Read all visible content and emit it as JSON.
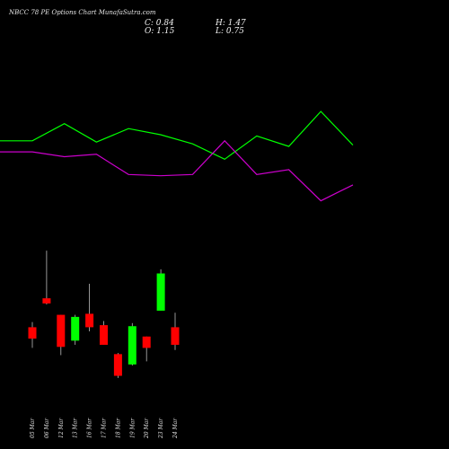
{
  "header": {
    "title": "NBCC 78 PE Options Chart MunafaSutra.com",
    "close_label": "C: 0.84",
    "open_label": "O: 1.15",
    "high_label": "H: 1.47",
    "low_label": "L: 0.75"
  },
  "colors": {
    "background": "#000000",
    "up": "#00ff00",
    "down": "#ff0000",
    "line_green": "#00ff00",
    "line_magenta": "#cc00cc"
  },
  "chart_data": [
    {
      "type": "line",
      "title": "",
      "x": [
        "",
        "05 Mar",
        "06 Mar",
        "12 Mar",
        "13 Mar",
        "16 Mar",
        "17 Mar",
        "18 Mar",
        "19 Mar",
        "20 Mar",
        "23 Mar",
        "24 Mar"
      ],
      "series": [
        {
          "name": "",
          "color": "#00ff00",
          "values": [
            0.62,
            0.62,
            0.9,
            0.6,
            0.82,
            0.72,
            0.57,
            0.32,
            0.7,
            0.53,
            1.1,
            0.55
          ]
        },
        {
          "name": "",
          "color": "#cc00cc",
          "values": [
            0.44,
            0.44,
            0.36,
            0.4,
            0.07,
            0.05,
            0.07,
            0.62,
            0.07,
            0.15,
            -0.36,
            -0.1
          ]
        }
      ],
      "ylim": [
        -0.6,
        1.6
      ],
      "grid": false
    },
    {
      "type": "candlestick",
      "title": "",
      "categories": [
        "05 Mar",
        "06 Mar",
        "12 Mar",
        "13 Mar",
        "16 Mar",
        "17 Mar",
        "18 Mar",
        "19 Mar",
        "20 Mar",
        "23 Mar",
        "24 Mar"
      ],
      "candles": [
        {
          "open": 0.7,
          "high": 0.75,
          "low": 0.5,
          "close": 0.59
        },
        {
          "open": 0.98,
          "high": 1.44,
          "low": 0.92,
          "close": 0.93
        },
        {
          "open": 0.82,
          "high": 0.82,
          "low": 0.43,
          "close": 0.51
        },
        {
          "open": 0.57,
          "high": 0.82,
          "low": 0.53,
          "close": 0.8
        },
        {
          "open": 0.83,
          "high": 1.12,
          "low": 0.66,
          "close": 0.7
        },
        {
          "open": 0.72,
          "high": 0.76,
          "low": 0.53,
          "close": 0.53
        },
        {
          "open": 0.44,
          "high": 0.45,
          "low": 0.21,
          "close": 0.23
        },
        {
          "open": 0.34,
          "high": 0.74,
          "low": 0.33,
          "close": 0.71
        },
        {
          "open": 0.61,
          "high": 0.61,
          "low": 0.37,
          "close": 0.5
        },
        {
          "open": 0.86,
          "high": 1.26,
          "low": 0.86,
          "close": 1.22
        },
        {
          "open": 0.7,
          "high": 0.84,
          "low": 0.48,
          "close": 0.53
        }
      ],
      "ylim": [
        0.0,
        1.65
      ],
      "grid": false
    }
  ]
}
